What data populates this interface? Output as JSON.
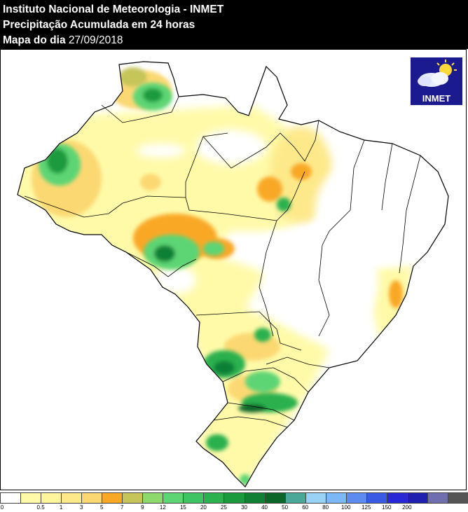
{
  "header": {
    "line1": "Instituto Nacional de Meteorologia - INMET",
    "line2": "Precipitação Acumulada em 24 horas",
    "line3_label": "Mapa do dia",
    "line3_date": "27/09/2018"
  },
  "logo": {
    "text": "INMET",
    "icon": "cloud-sun-icon"
  },
  "legend": {
    "colors": [
      "#ffffff",
      "#fffaa8",
      "#fff59c",
      "#fde98a",
      "#fcd872",
      "#f9a825",
      "#c5c55a",
      "#8ed96b",
      "#5dd574",
      "#3ec463",
      "#2bb14e",
      "#1a9a3c",
      "#118034",
      "#0b662a",
      "#4aa898",
      "#9ad2f5",
      "#7cb8f5",
      "#5e8bf0",
      "#3a5ae6",
      "#2828d6",
      "#1f1fb0",
      "#6f6fb0",
      "#555555"
    ],
    "ticks": [
      "0",
      "0.5",
      "1",
      "3",
      "5",
      "7",
      "9",
      "12",
      "15",
      "20",
      "25",
      "30",
      "40",
      "50",
      "60",
      "80",
      "100",
      "125",
      "150",
      "200"
    ]
  }
}
